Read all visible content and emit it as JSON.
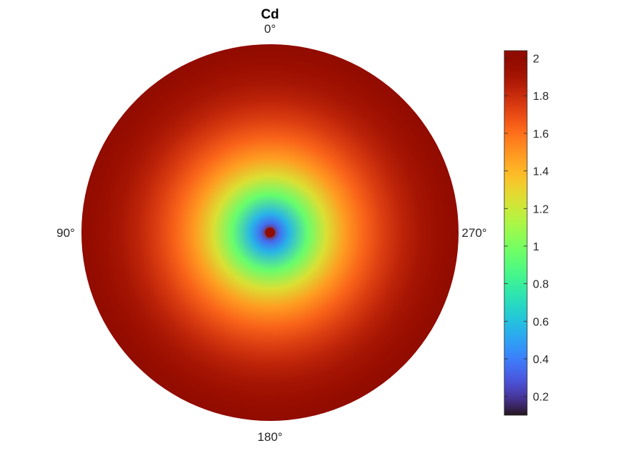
{
  "chart_data": {
    "type": "heatmap",
    "subtype": "polar-surface",
    "title": "Cd",
    "angle_labels": [
      "0°",
      "90°",
      "180°",
      "270°"
    ],
    "angle_values_deg": [
      0,
      90,
      180,
      270
    ],
    "angle_direction": "counterclockwise",
    "zero_location": "top",
    "field": {
      "radial_profile": {
        "r_norm": [
          0.0,
          0.05,
          0.1,
          0.2,
          0.3,
          0.4,
          0.5,
          0.6,
          0.7,
          0.8,
          0.9,
          1.0
        ],
        "value": [
          2.03,
          0.35,
          0.55,
          0.95,
          1.25,
          1.48,
          1.63,
          1.74,
          1.83,
          1.9,
          1.95,
          2.0
        ]
      },
      "center_marker_value": 2.03
    },
    "colorbar": {
      "colormap": "turbo",
      "range": [
        0.1,
        2.04
      ],
      "ticks": [
        0.2,
        0.4,
        0.6,
        0.8,
        1,
        1.2,
        1.4,
        1.6,
        1.8,
        2
      ],
      "tick_labels": [
        "0.2",
        "0.4",
        "0.6",
        "0.8",
        "1",
        "1.2",
        "1.4",
        "1.6",
        "1.8",
        "2"
      ],
      "placement": "right"
    }
  }
}
